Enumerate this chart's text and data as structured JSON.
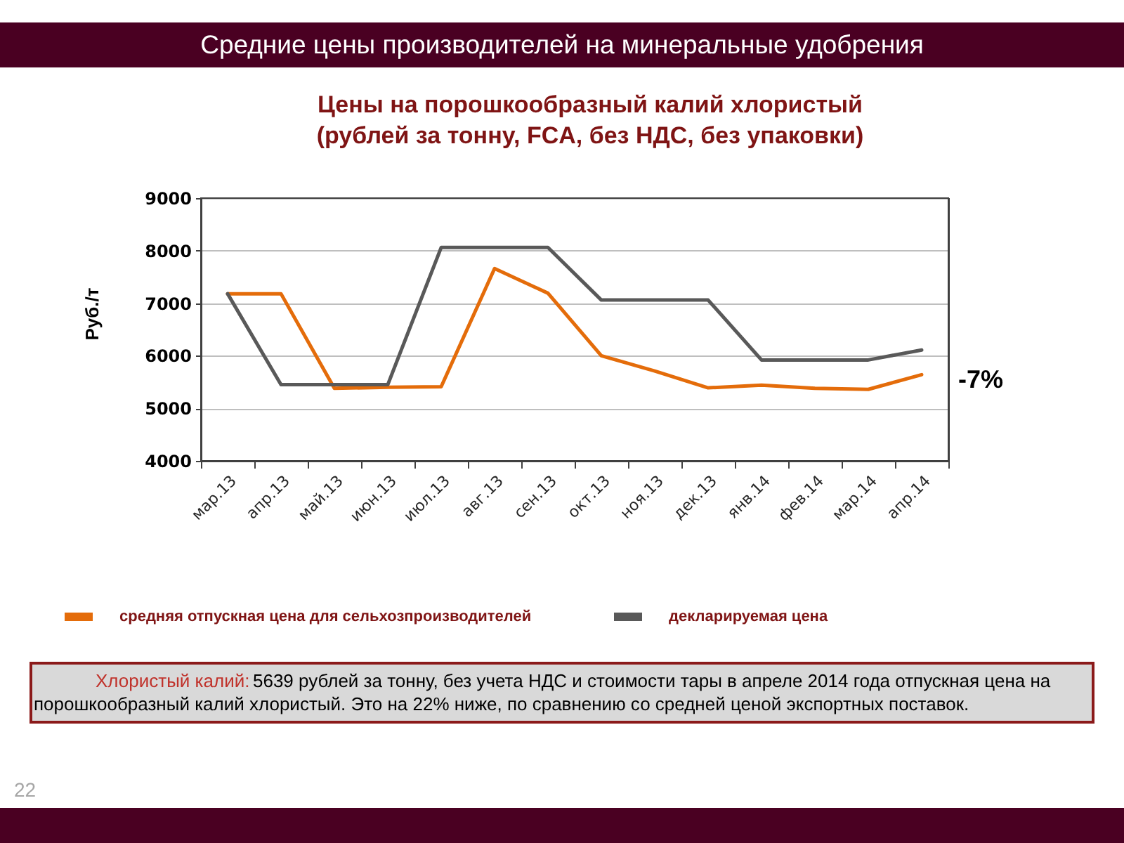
{
  "chart_data": {
    "type": "line",
    "title": "Средние цены производителей на минеральные удобрения",
    "subtitle": "Цены на порошкообразный калий хлористый\n(рублей за тонну, FCA, без НДС, без упаковки)",
    "ylabel": "Руб./т",
    "categories": [
      "мар.13",
      "апр.13",
      "май.13",
      "июн.13",
      "июл.13",
      "авг.13",
      "сен.13",
      "окт.13",
      "ноя.13",
      "дек.13",
      "янв.14",
      "фев.14",
      "мар.14",
      "апр.14"
    ],
    "series": [
      {
        "name": "средняя отпускная цена для сельхозпроизводителей",
        "color": "#e46c0a",
        "values": [
          7180,
          7180,
          5380,
          5400,
          5410,
          7660,
          7190,
          6000,
          5710,
          5390,
          5440,
          5380,
          5360,
          5640
        ]
      },
      {
        "name": "декларируемая цена",
        "color": "#595959",
        "values": [
          7180,
          5450,
          5450,
          5450,
          8060,
          8060,
          8060,
          7060,
          7060,
          7060,
          5920,
          5920,
          5920,
          6110
        ]
      }
    ],
    "ylim": [
      4000,
      9000
    ],
    "yticks": [
      4000,
      5000,
      6000,
      7000,
      8000,
      9000
    ],
    "grid": "y",
    "legend": "bottom",
    "annotations": [
      "-7%",
      "Хлористый калий: 5639 рублей за тонну, без учета НДС и стоимости тары в апреле 2014 года отпускная цена на порошкообразный калий хлористый. Это на 22% ниже, по сравнению  со средней ценой экспортных поставок.",
      "22"
    ]
  }
}
